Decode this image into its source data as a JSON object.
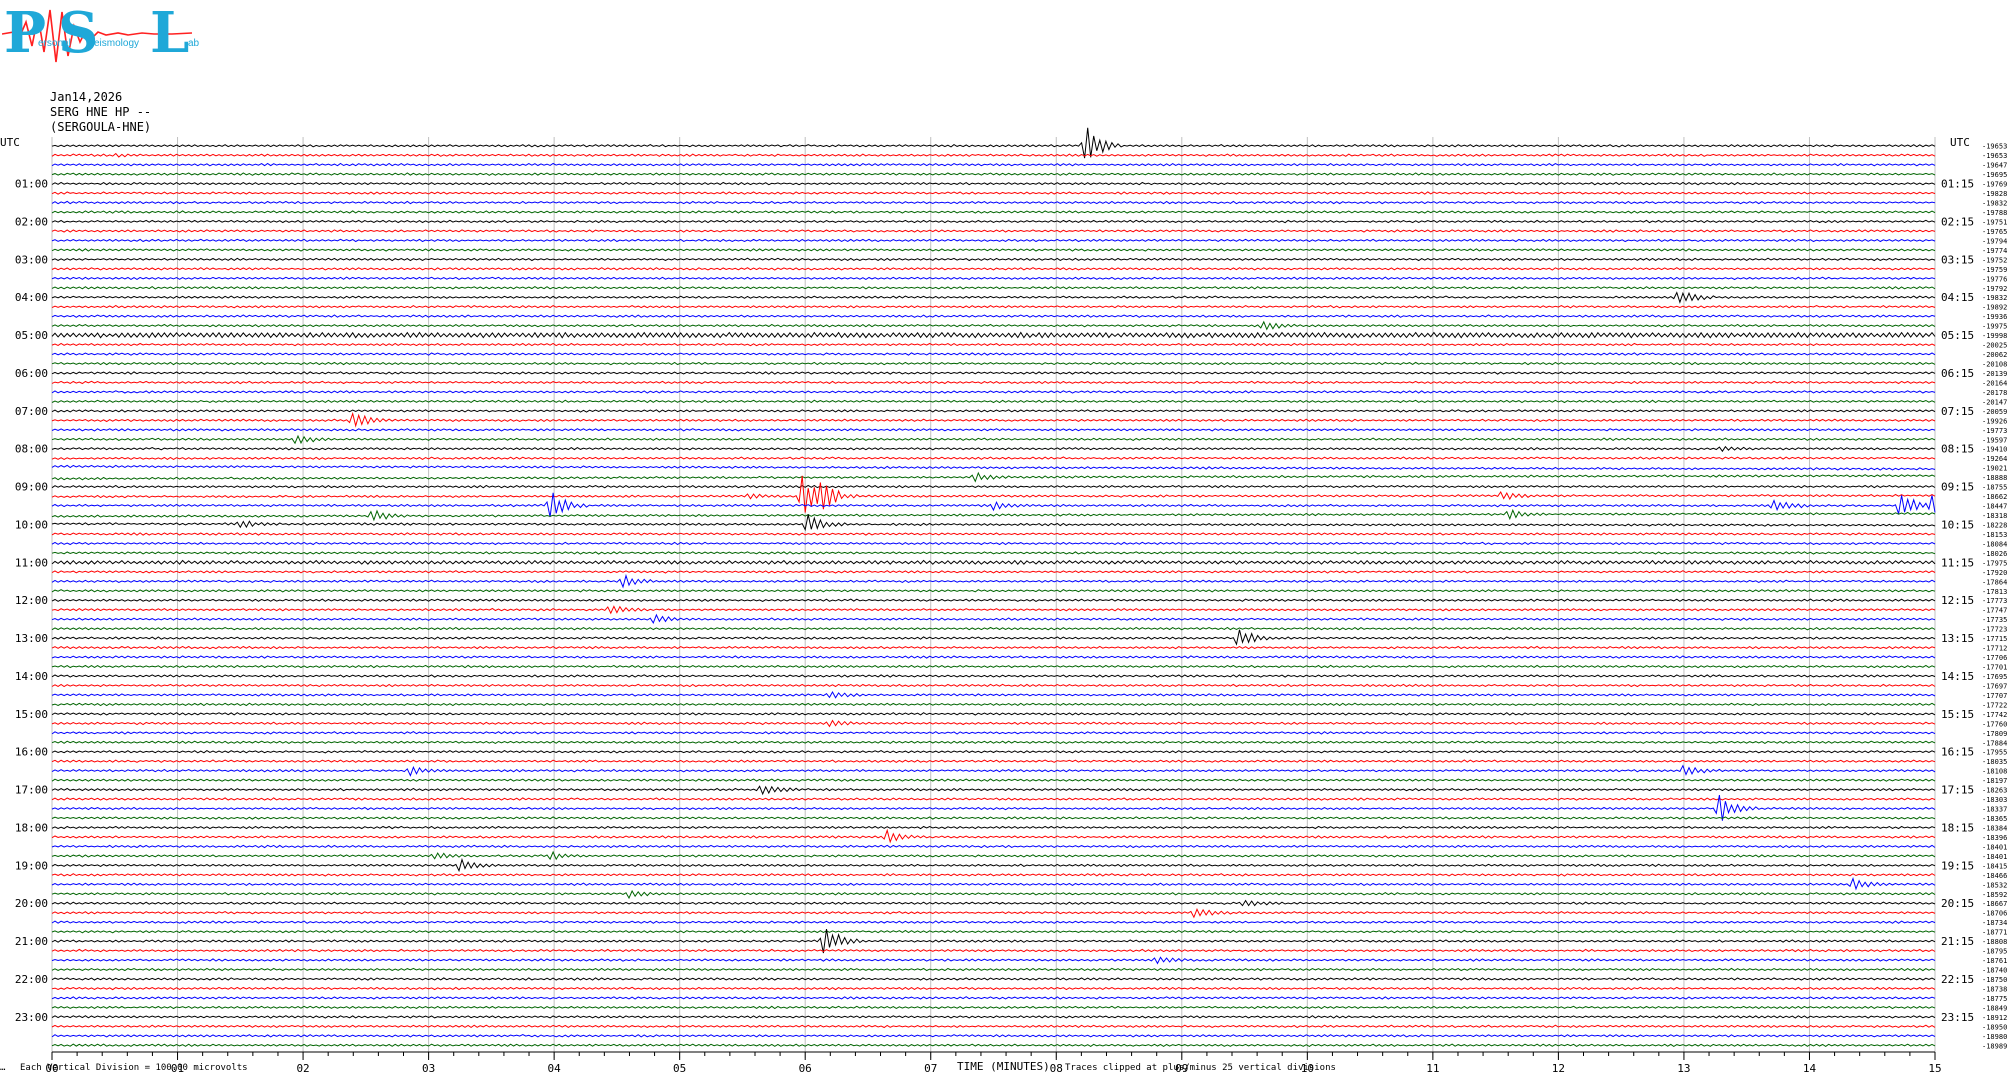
{
  "logo": {
    "big_letters": [
      "P",
      "S",
      "L"
    ],
    "small_text": [
      "ersonal",
      "eismology",
      "ab"
    ]
  },
  "header": {
    "date": "Jan14,2026",
    "station": "SERG HNE HP --",
    "site": "(SERGOULA-HNE)"
  },
  "footer": {
    "scale_note": "Each Vertical Division =  100.00 microvolts",
    "x_axis_title": "TIME (MINUTES)",
    "clip_note": "Traces clipped at plus/minus 25 vertical divisions",
    "corner_mark": "…"
  },
  "chart_data": {
    "type": "line",
    "xlabel": "TIME (MINUTES)",
    "xlim": [
      0,
      15
    ],
    "x_ticks": [
      "00",
      "01",
      "02",
      "03",
      "04",
      "05",
      "06",
      "07",
      "08",
      "09",
      "10",
      "11",
      "12",
      "13",
      "14",
      "15"
    ],
    "left_axis_title": "UTC",
    "right_axis_title": "UTC",
    "left_hour_labels": [
      "01:00",
      "02:00",
      "03:00",
      "04:00",
      "05:00",
      "06:00",
      "07:00",
      "08:00",
      "09:00",
      "10:00",
      "11:00",
      "12:00",
      "13:00",
      "14:00",
      "15:00",
      "16:00",
      "17:00",
      "18:00",
      "19:00",
      "20:00",
      "21:00",
      "22:00",
      "23:00"
    ],
    "right_hour_labels": [
      "01:15",
      "02:15",
      "03:15",
      "04:15",
      "05:15",
      "06:15",
      "07:15",
      "08:15",
      "09:15",
      "10:15",
      "11:15",
      "12:15",
      "13:15",
      "14:15",
      "15:15",
      "16:15",
      "17:15",
      "18:15",
      "19:15",
      "20:15",
      "21:15",
      "22:15",
      "23:15"
    ],
    "trace_colors": [
      "#000000",
      "#ff0000",
      "#0000ff",
      "#006400"
    ],
    "trace_interval_minutes": 15,
    "trace_means": [
      "-19653",
      "-19653",
      "-19647",
      "-19695",
      "-19769",
      "-19828",
      "-19832",
      "-19788",
      "-19751",
      "-19765",
      "-19794",
      "-19774",
      "-19752",
      "-19759",
      "-19776",
      "-19792",
      "-19832",
      "-19892",
      "-19936",
      "-19975",
      "-19998",
      "-20025",
      "-20062",
      "-20108",
      "-20139",
      "-20164",
      "-20178",
      "-20147",
      "-20059",
      "-19926",
      "-19773",
      "-19597",
      "-19410",
      "-19264",
      "-19021",
      "-18888",
      "-18755",
      "-18662",
      "-18447",
      "-18318",
      "-18228",
      "-18153",
      "-18084",
      "-18026",
      "-17975",
      "-17920",
      "-17864",
      "-17813",
      "-17773",
      "-17747",
      "-17735",
      "-17723",
      "-17715",
      "-17712",
      "-17706",
      "-17701",
      "-17695",
      "-17697",
      "-17707",
      "-17722",
      "-17742",
      "-17760",
      "-17809",
      "-17884",
      "-17955",
      "-18035",
      "-18108",
      "-18197",
      "-18263",
      "-18303",
      "-18337",
      "-18365",
      "-18384",
      "-18396",
      "-18401",
      "-18401",
      "-18415",
      "-18466",
      "-18532",
      "-18592",
      "-18667",
      "-18706",
      "-18734",
      "-18771",
      "-18808",
      "-18795",
      "-18761",
      "-18740",
      "-18750",
      "-18738",
      "-18775",
      "-18849",
      "-18912",
      "-18950",
      "-18980",
      "-18989"
    ],
    "events": [
      {
        "trace": 0,
        "minute": 8.23,
        "amp": 1.8
      },
      {
        "trace": 1,
        "minute": 0.5,
        "amp": 0.1
      },
      {
        "trace": 16,
        "minute": 12.95,
        "amp": 0.8
      },
      {
        "trace": 19,
        "minute": 9.65,
        "amp": 0.4
      },
      {
        "trace": 29,
        "minute": 2.4,
        "amp": 0.9
      },
      {
        "trace": 31,
        "minute": 1.95,
        "amp": 0.45
      },
      {
        "trace": 32,
        "minute": 13.3,
        "amp": 0.2
      },
      {
        "trace": 35,
        "minute": 7.35,
        "amp": 0.35
      },
      {
        "trace": 37,
        "minute": 5.98,
        "amp": 1.9
      },
      {
        "trace": 37,
        "minute": 6.12,
        "amp": 1.2
      },
      {
        "trace": 37,
        "minute": 5.55,
        "amp": 0.3
      },
      {
        "trace": 37,
        "minute": 11.55,
        "amp": 0.45
      },
      {
        "trace": 38,
        "minute": 3.97,
        "amp": 1.3
      },
      {
        "trace": 38,
        "minute": 7.5,
        "amp": 0.3
      },
      {
        "trace": 38,
        "minute": 13.72,
        "amp": 0.6
      },
      {
        "trace": 38,
        "minute": 14.72,
        "amp": 1.2
      },
      {
        "trace": 38,
        "minute": 14.98,
        "amp": 1.0
      },
      {
        "trace": 39,
        "minute": 2.55,
        "amp": 0.6
      },
      {
        "trace": 39,
        "minute": 11.6,
        "amp": 0.45
      },
      {
        "trace": 40,
        "minute": 6.02,
        "amp": 0.9
      },
      {
        "trace": 40,
        "minute": 1.5,
        "amp": 0.3
      },
      {
        "trace": 46,
        "minute": 4.55,
        "amp": 0.55
      },
      {
        "trace": 49,
        "minute": 4.45,
        "amp": 0.5
      },
      {
        "trace": 50,
        "minute": 4.8,
        "amp": 0.4
      },
      {
        "trace": 52,
        "minute": 9.45,
        "amp": 0.8
      },
      {
        "trace": 58,
        "minute": 6.2,
        "amp": 0.35
      },
      {
        "trace": 61,
        "minute": 6.2,
        "amp": 0.3
      },
      {
        "trace": 66,
        "minute": 2.85,
        "amp": 0.4
      },
      {
        "trace": 66,
        "minute": 13.0,
        "amp": 0.45
      },
      {
        "trace": 68,
        "minute": 5.65,
        "amp": 0.45
      },
      {
        "trace": 70,
        "minute": 13.28,
        "amp": 1.3
      },
      {
        "trace": 73,
        "minute": 6.65,
        "amp": 0.5
      },
      {
        "trace": 76,
        "minute": 3.25,
        "amp": 0.55
      },
      {
        "trace": 75,
        "minute": 3.05,
        "amp": 0.3
      },
      {
        "trace": 75,
        "minute": 3.98,
        "amp": 0.35
      },
      {
        "trace": 78,
        "minute": 14.35,
        "amp": 0.45
      },
      {
        "trace": 79,
        "minute": 4.6,
        "amp": 0.35
      },
      {
        "trace": 80,
        "minute": 9.5,
        "amp": 0.3
      },
      {
        "trace": 81,
        "minute": 9.1,
        "amp": 0.45
      },
      {
        "trace": 84,
        "minute": 6.15,
        "amp": 1.4
      },
      {
        "trace": 86,
        "minute": 8.8,
        "amp": 0.3
      }
    ]
  }
}
